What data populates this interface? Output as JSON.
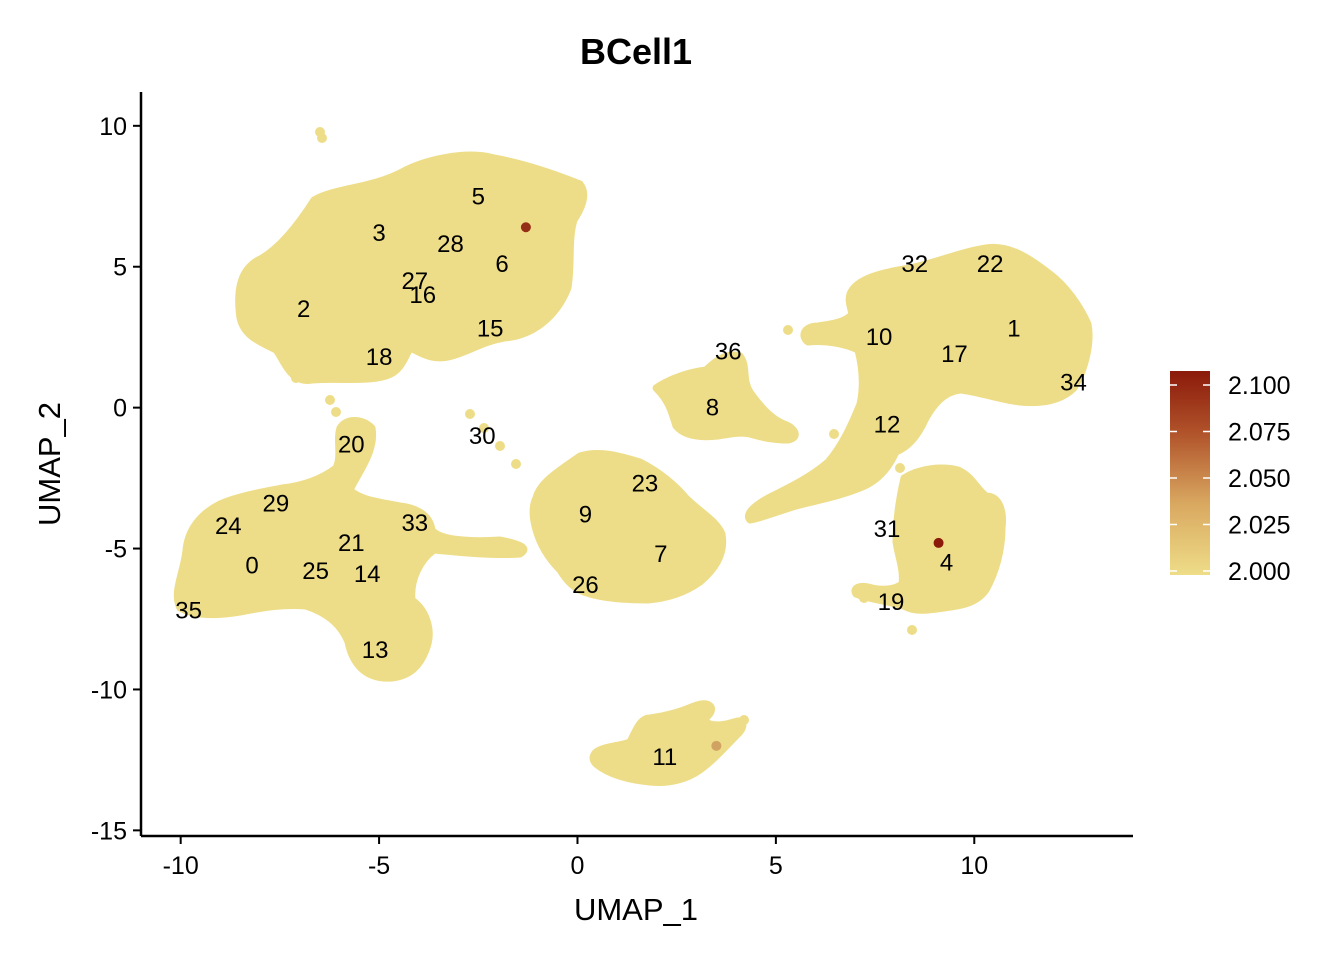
{
  "chart_data": {
    "type": "scatter",
    "title": "BCell1",
    "xlabel": "UMAP_1",
    "ylabel": "UMAP_2",
    "xlim": [
      -11,
      14
    ],
    "ylim": [
      -15.2,
      11.2
    ],
    "xticks": [
      -10,
      -5,
      0,
      5,
      10
    ],
    "yticks": [
      10,
      5,
      0,
      -5,
      -10,
      -15
    ],
    "point_color": "#EEDD88",
    "colorscale": {
      "low": "#EEDD88",
      "high": "#8B1A0A",
      "min": 2.0,
      "max": 2.1,
      "ticks": [
        "2.100",
        "2.075",
        "2.050",
        "2.025",
        "2.000"
      ]
    },
    "clusters": [
      {
        "label": "0",
        "x": -8.2,
        "y": -5.6
      },
      {
        "label": "1",
        "x": 11.0,
        "y": 2.8
      },
      {
        "label": "2",
        "x": -6.9,
        "y": 3.5
      },
      {
        "label": "3",
        "x": -5.0,
        "y": 6.2
      },
      {
        "label": "4",
        "x": 9.3,
        "y": -5.5
      },
      {
        "label": "5",
        "x": -2.5,
        "y": 7.5
      },
      {
        "label": "6",
        "x": -1.9,
        "y": 5.1
      },
      {
        "label": "7",
        "x": 2.1,
        "y": -5.2
      },
      {
        "label": "8",
        "x": 3.4,
        "y": 0.0
      },
      {
        "label": "9",
        "x": 0.2,
        "y": -3.8
      },
      {
        "label": "10",
        "x": 7.6,
        "y": 2.5
      },
      {
        "label": "11",
        "x": 2.2,
        "y": -12.4
      },
      {
        "label": "12",
        "x": 7.8,
        "y": -0.6
      },
      {
        "label": "13",
        "x": -5.1,
        "y": -8.6
      },
      {
        "label": "14",
        "x": -5.3,
        "y": -5.9
      },
      {
        "label": "15",
        "x": -2.2,
        "y": 2.8
      },
      {
        "label": "16",
        "x": -3.9,
        "y": 4.0
      },
      {
        "label": "17",
        "x": 9.5,
        "y": 1.9
      },
      {
        "label": "18",
        "x": -5.0,
        "y": 1.8
      },
      {
        "label": "19",
        "x": 7.9,
        "y": -6.9
      },
      {
        "label": "20",
        "x": -5.7,
        "y": -1.3
      },
      {
        "label": "21",
        "x": -5.7,
        "y": -4.8
      },
      {
        "label": "22",
        "x": 10.4,
        "y": 5.1
      },
      {
        "label": "23",
        "x": 1.7,
        "y": -2.7
      },
      {
        "label": "24",
        "x": -8.8,
        "y": -4.2
      },
      {
        "label": "25",
        "x": -6.6,
        "y": -5.8
      },
      {
        "label": "26",
        "x": 0.2,
        "y": -6.3
      },
      {
        "label": "27",
        "x": -4.1,
        "y": 4.5
      },
      {
        "label": "28",
        "x": -3.2,
        "y": 5.8
      },
      {
        "label": "29",
        "x": -7.6,
        "y": -3.4
      },
      {
        "label": "30",
        "x": -2.4,
        "y": -1.0
      },
      {
        "label": "31",
        "x": 7.8,
        "y": -4.3
      },
      {
        "label": "32",
        "x": 8.5,
        "y": 5.1
      },
      {
        "label": "33",
        "x": -4.1,
        "y": -4.1
      },
      {
        "label": "34",
        "x": 12.5,
        "y": 0.9
      },
      {
        "label": "35",
        "x": -9.8,
        "y": -7.2
      },
      {
        "label": "36",
        "x": 3.8,
        "y": 2.0
      }
    ],
    "highlighted_points": [
      {
        "x": -1.3,
        "y": 6.4,
        "value": 2.09
      },
      {
        "x": 9.1,
        "y": -4.8,
        "value": 2.1
      },
      {
        "x": 3.5,
        "y": -12.0,
        "value": 2.03
      }
    ]
  }
}
